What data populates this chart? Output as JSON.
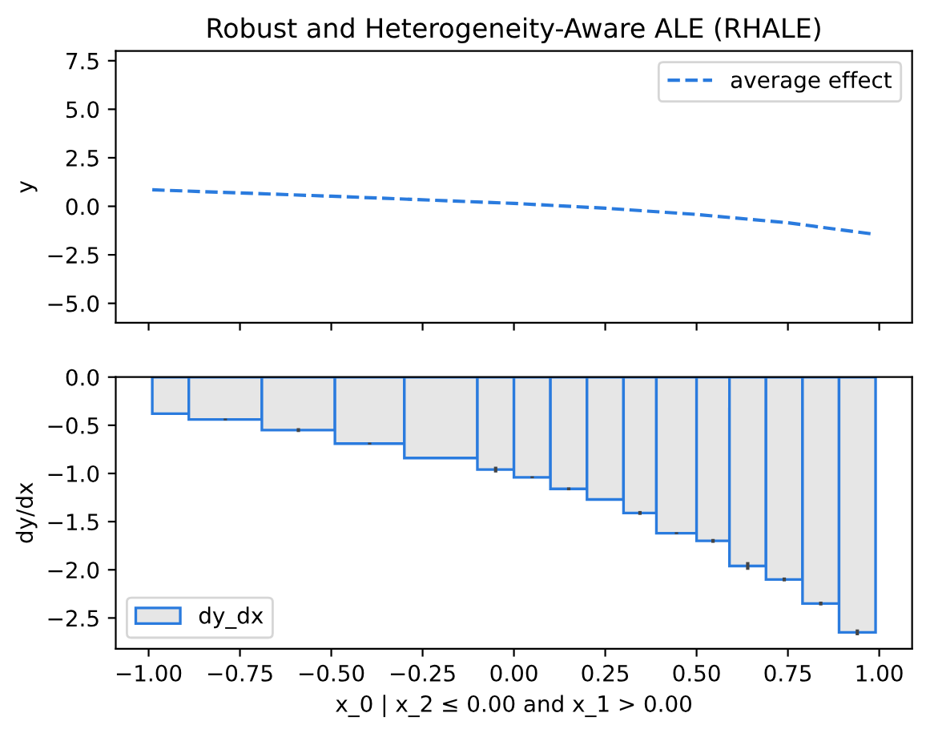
{
  "chart_data": [
    {
      "type": "line",
      "title": "Robust and Heterogeneity-Aware ALE (RHALE)",
      "ylabel": "y",
      "xlim": [
        -1.09,
        1.09
      ],
      "ylim": [
        -6,
        8
      ],
      "yticks": [
        {
          "value": -5,
          "label": "−5.0"
        },
        {
          "value": -2.5,
          "label": "−2.5"
        },
        {
          "value": 0,
          "label": "0.0"
        },
        {
          "value": 2.5,
          "label": "2.5"
        },
        {
          "value": 5,
          "label": "5.0"
        },
        {
          "value": 7.5,
          "label": "7.5"
        }
      ],
      "tick_labels": "y",
      "legend": "top right",
      "line_style": "dashed",
      "series": [
        {
          "name": "average effect",
          "color": "#2a7bde",
          "x": [
            -0.99,
            -0.5,
            0.0,
            0.25,
            0.5,
            0.75,
            0.99
          ],
          "values": [
            0.85,
            0.52,
            0.15,
            -0.1,
            -0.42,
            -0.85,
            -1.45
          ]
        }
      ]
    },
    {
      "type": "histogram",
      "xlabel": "x_0 | x_2 ≤ 0.00 and x_1 > 0.00",
      "ylabel": "dy/dx",
      "xlim": [
        -1.09,
        1.09
      ],
      "xticks": [
        {
          "value": -1.0,
          "label": "−1.00"
        },
        {
          "value": -0.75,
          "label": "−0.75"
        },
        {
          "value": -0.5,
          "label": "−0.50"
        },
        {
          "value": -0.25,
          "label": "−0.25"
        },
        {
          "value": 0.0,
          "label": "0.00"
        },
        {
          "value": 0.25,
          "label": "0.25"
        },
        {
          "value": 0.5,
          "label": "0.50"
        },
        {
          "value": 0.75,
          "label": "0.75"
        },
        {
          "value": 1.0,
          "label": "1.00"
        }
      ],
      "ylim": [
        -2.82,
        0
      ],
      "yticks": [
        {
          "value": -2.5,
          "label": "−2.5"
        },
        {
          "value": -2.0,
          "label": "−2.0"
        },
        {
          "value": -1.5,
          "label": "−1.5"
        },
        {
          "value": -1.0,
          "label": "−1.0"
        },
        {
          "value": -0.5,
          "label": "−0.5"
        },
        {
          "value": 0.0,
          "label": "0.0"
        }
      ],
      "legend": "bottom left",
      "bins": [
        -0.99,
        -0.89,
        -0.69,
        -0.49,
        -0.3,
        -0.1,
        0.0,
        0.1,
        0.2,
        0.3,
        0.39,
        0.5,
        0.59,
        0.69,
        0.79,
        0.89,
        0.99
      ],
      "series": [
        {
          "name": "dy_dx",
          "color": "#2a7bde",
          "values": [
            -0.38,
            -0.44,
            -0.55,
            -0.69,
            -0.84,
            -0.96,
            -1.04,
            -1.16,
            -1.27,
            -1.41,
            -1.62,
            -1.7,
            -1.96,
            -2.1,
            -2.35,
            -2.65
          ],
          "errors": [
            null,
            0.01,
            0.02,
            0.01,
            null,
            0.03,
            0.01,
            0.015,
            null,
            0.02,
            0.01,
            0.02,
            0.04,
            0.02,
            0.02,
            0.03
          ]
        }
      ]
    }
  ]
}
